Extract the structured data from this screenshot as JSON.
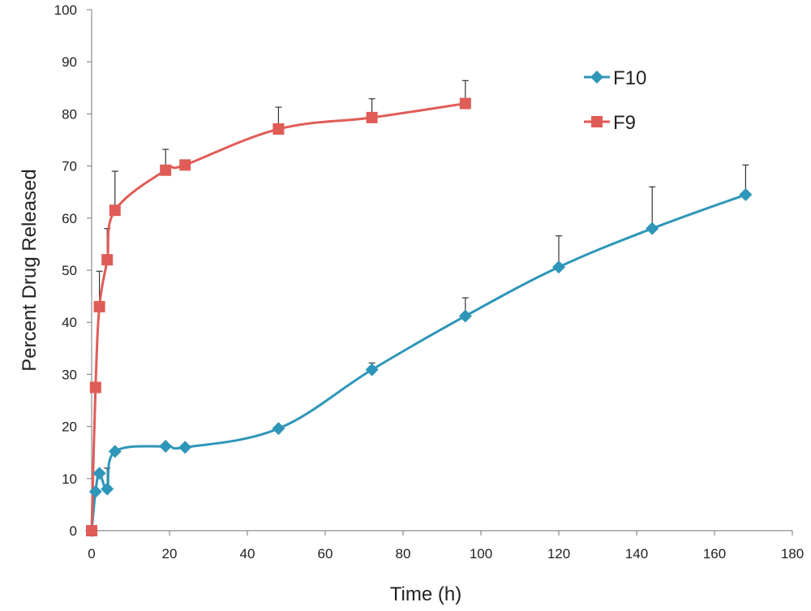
{
  "chart_data": {
    "type": "line",
    "xlabel": "Time (h)",
    "ylabel": "Percent Drug Released",
    "xlim": [
      0,
      180
    ],
    "ylim": [
      0,
      100
    ],
    "xticks": [
      "0",
      "20",
      "40",
      "60",
      "80",
      "100",
      "120",
      "140",
      "160",
      "180"
    ],
    "yticks": [
      "0",
      "10",
      "20",
      "30",
      "40",
      "50",
      "60",
      "70",
      "80",
      "90",
      "100"
    ],
    "grid": false,
    "legend_position": "top-right",
    "series": [
      {
        "name": "F10",
        "color": "#2E96B8",
        "marker": "diamond",
        "x": [
          0,
          1,
          2,
          4,
          6,
          19,
          24,
          48,
          72,
          96,
          120,
          144,
          168
        ],
        "y": [
          0,
          7.5,
          11,
          8,
          15.2,
          16.2,
          16,
          19.6,
          30.9,
          41.2,
          50.6,
          58,
          64.5
        ],
        "error": [
          0,
          0,
          0,
          4,
          0,
          0,
          0,
          0,
          1.3,
          3.5,
          6,
          8,
          5.7
        ]
      },
      {
        "name": "F9",
        "color": "#E05C57",
        "marker": "square",
        "x": [
          0,
          1,
          2,
          4,
          6,
          19,
          24,
          48,
          72,
          96
        ],
        "y": [
          0,
          27.5,
          43,
          52,
          61.5,
          69.2,
          70.2,
          77.1,
          79.3,
          82
        ],
        "error": [
          0,
          0,
          6.8,
          6,
          7.5,
          4,
          0,
          4.2,
          3.6,
          4.4
        ]
      }
    ]
  }
}
